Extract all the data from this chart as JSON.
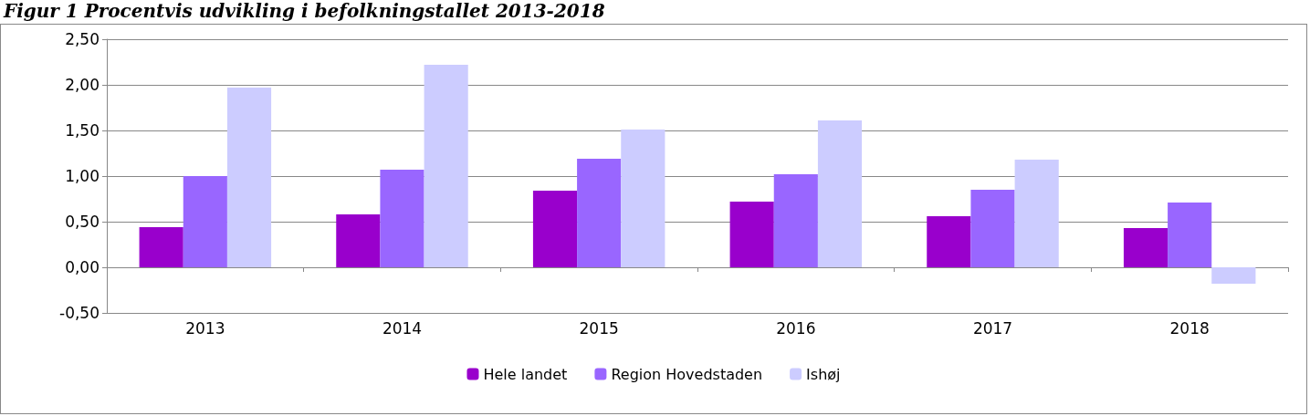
{
  "chart_data": {
    "type": "bar",
    "title": "Figur 1 Procentvis udvikling i befolkningstallet 2013-2018",
    "categories": [
      "2013",
      "2014",
      "2015",
      "2016",
      "2017",
      "2018"
    ],
    "series": [
      {
        "name": "Hele landet",
        "color": "#9900cc",
        "values": [
          0.44,
          0.58,
          0.84,
          0.72,
          0.56,
          0.43
        ]
      },
      {
        "name": "Region Hovedstaden",
        "color": "#9966ff",
        "values": [
          1.0,
          1.07,
          1.19,
          1.02,
          0.85,
          0.71
        ]
      },
      {
        "name": "Ishøj",
        "color": "#ccccff",
        "values": [
          1.97,
          2.22,
          1.51,
          1.61,
          1.18,
          -0.18
        ]
      }
    ],
    "ylim": [
      -0.5,
      2.5
    ],
    "yticks": [
      {
        "value": -0.5,
        "label": "-0,50"
      },
      {
        "value": 0,
        "label": "0,00"
      },
      {
        "value": 0.5,
        "label": "0,50"
      },
      {
        "value": 1,
        "label": "1,00"
      },
      {
        "value": 1.5,
        "label": "1,50"
      },
      {
        "value": 2,
        "label": "2,00"
      },
      {
        "value": 2.5,
        "label": "2,50"
      }
    ],
    "grid": "y",
    "legend": "bottom"
  }
}
